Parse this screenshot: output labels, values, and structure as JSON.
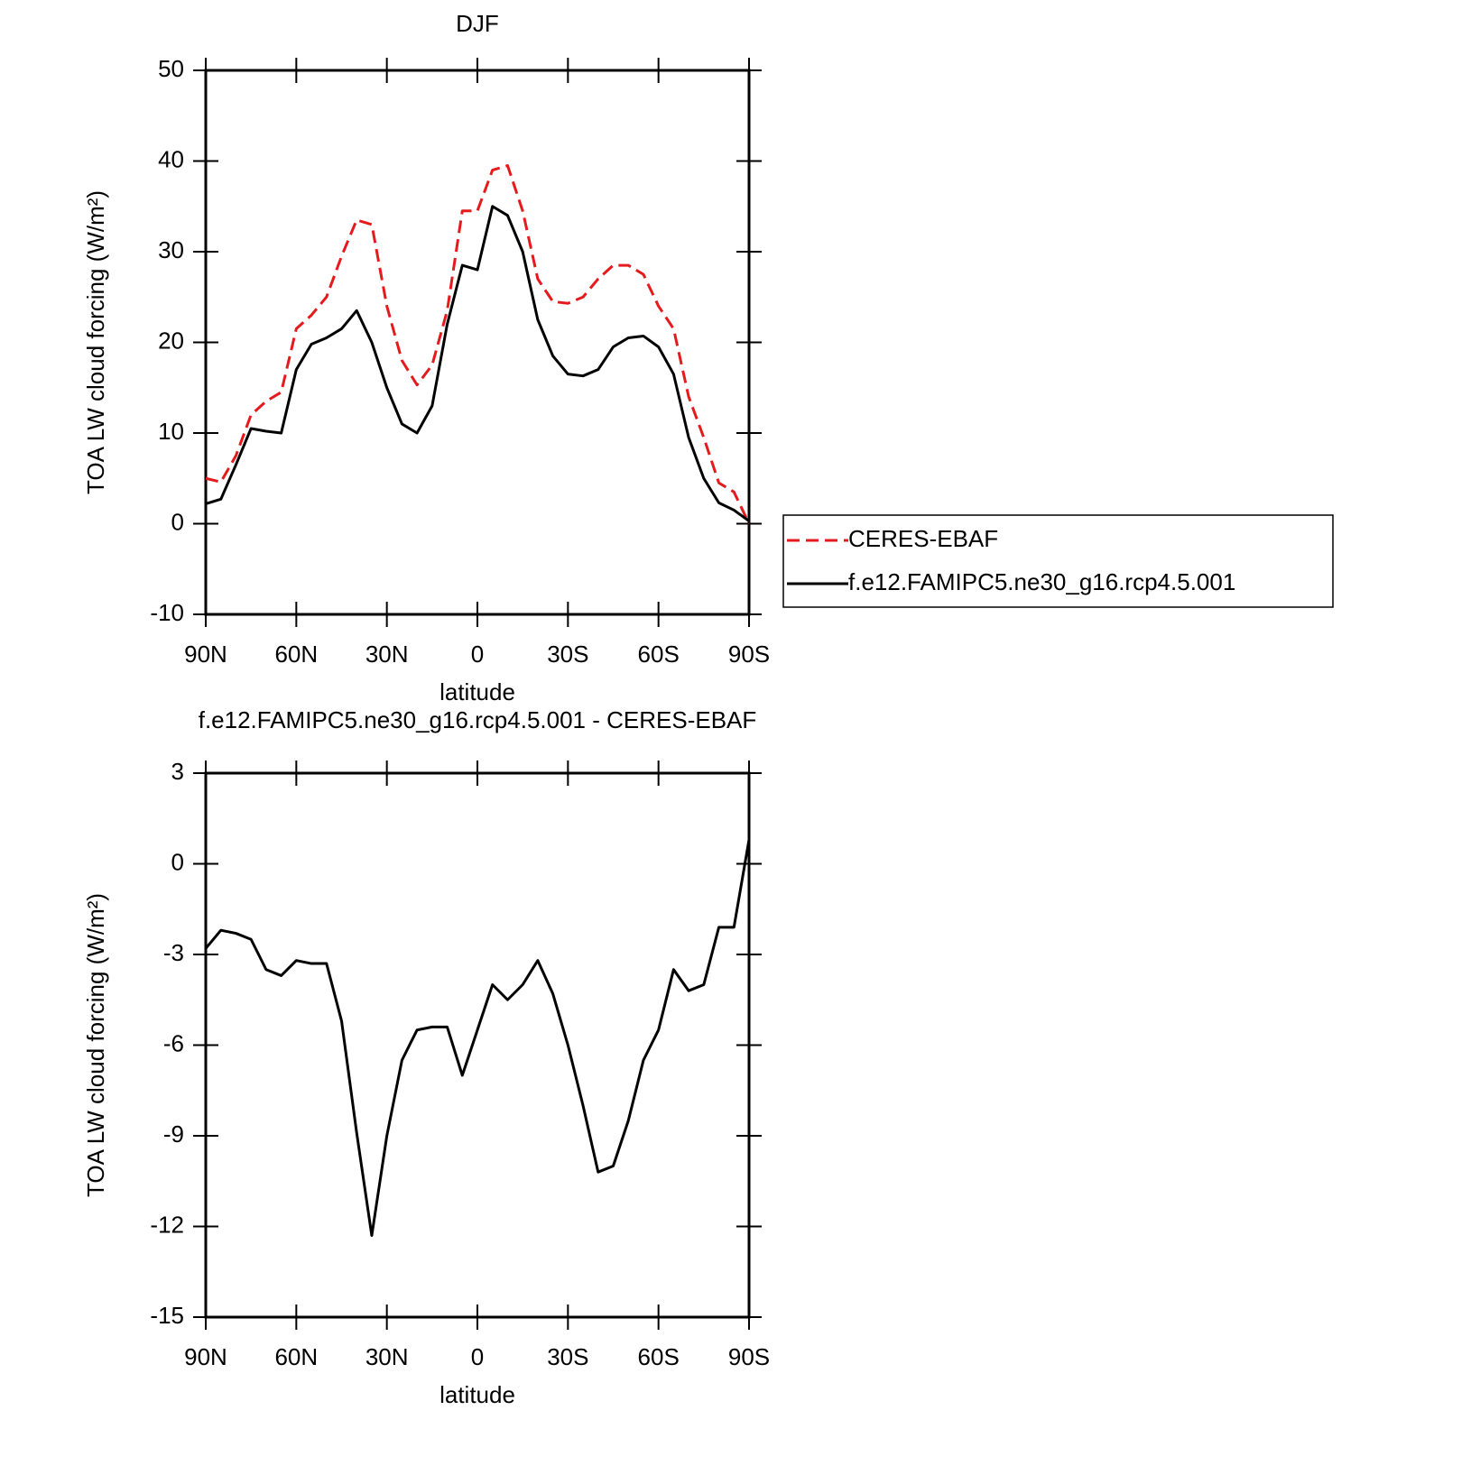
{
  "chart_data": [
    {
      "type": "line",
      "title": "DJF",
      "xlabel": "latitude",
      "ylabel": "TOA LW cloud forcing (W/m²)",
      "x": [
        90,
        85,
        80,
        75,
        70,
        65,
        60,
        55,
        50,
        45,
        40,
        35,
        30,
        25,
        20,
        15,
        10,
        5,
        0,
        -5,
        -10,
        -15,
        -20,
        -25,
        -30,
        -35,
        -40,
        -45,
        -50,
        -55,
        -60,
        -65,
        -70,
        -75,
        -80,
        -85,
        -90
      ],
      "xlim": [
        90,
        -90
      ],
      "xticks": [
        {
          "value": 90,
          "label": "90N"
        },
        {
          "value": 60,
          "label": "60N"
        },
        {
          "value": 30,
          "label": "30N"
        },
        0,
        {
          "value": -30,
          "label": "30S"
        },
        {
          "value": -60,
          "label": "60S"
        },
        {
          "value": -90,
          "label": "90S"
        }
      ],
      "ylim": [
        -10,
        50
      ],
      "yticks": [
        -10,
        0,
        10,
        20,
        30,
        40,
        50
      ],
      "legend": "right",
      "series": [
        {
          "name": "CERES-EBAF",
          "color": "#e41a1c",
          "line_style": "dashed",
          "values": [
            5,
            4.6,
            7.5,
            12,
            13.5,
            14.5,
            21.5,
            23,
            25,
            29.5,
            33.5,
            33,
            24,
            18,
            15.3,
            17.5,
            23.5,
            34.5,
            34.5,
            39,
            39.5,
            34.5,
            27,
            24.5,
            24.3,
            25,
            27,
            28.5,
            28.5,
            27.5,
            24,
            21.5,
            14,
            9.5,
            4.5,
            3.5,
            0
          ]
        },
        {
          "name": "f.e12.FAMIPC5.ne30_g16.rcp4.5.001",
          "color": "#000000",
          "line_style": "solid",
          "values": [
            2.2,
            2.7,
            6.5,
            10.5,
            10.2,
            10,
            17,
            19.8,
            20.5,
            21.5,
            23.5,
            20,
            15,
            11,
            10,
            13,
            22,
            28.5,
            28,
            35,
            34,
            30,
            22.5,
            18.5,
            16.5,
            16.3,
            17,
            19.5,
            20.5,
            20.7,
            19.5,
            16.5,
            9.5,
            5,
            2.3,
            1.5,
            0.3
          ]
        }
      ]
    },
    {
      "type": "line",
      "title": "f.e12.FAMIPC5.ne30_g16.rcp4.5.001 - CERES-EBAF",
      "xlabel": "latitude",
      "ylabel": "TOA LW cloud forcing (W/m²)",
      "x": [
        90,
        85,
        80,
        75,
        70,
        65,
        60,
        55,
        50,
        45,
        40,
        35,
        30,
        25,
        20,
        15,
        10,
        5,
        0,
        -5,
        -10,
        -15,
        -20,
        -25,
        -30,
        -35,
        -40,
        -45,
        -50,
        -55,
        -60,
        -65,
        -70,
        -75,
        -80,
        -85,
        -90
      ],
      "xlim": [
        90,
        -90
      ],
      "xticks": [
        {
          "value": 90,
          "label": "90N"
        },
        {
          "value": 60,
          "label": "60N"
        },
        {
          "value": 30,
          "label": "30N"
        },
        0,
        {
          "value": -30,
          "label": "30S"
        },
        {
          "value": -60,
          "label": "60S"
        },
        {
          "value": -90,
          "label": "90S"
        }
      ],
      "ylim": [
        -15,
        3
      ],
      "yticks": [
        -15,
        -12,
        -9,
        -6,
        -3,
        0,
        3
      ],
      "series": [
        {
          "color": "#000000",
          "line_style": "solid",
          "values": [
            -2.8,
            -2.2,
            -2.3,
            -2.5,
            -3.5,
            -3.7,
            -3.2,
            -3.3,
            -3.3,
            -5.2,
            -8.9,
            -12.3,
            -9,
            -6.5,
            -5.5,
            -5.4,
            -5.4,
            -7,
            -5.5,
            -4,
            -4.5,
            -4,
            -3.2,
            -4.3,
            -6,
            -8,
            -10.2,
            -10,
            -8.5,
            -6.5,
            -5.5,
            -3.5,
            -4.2,
            -4,
            -2.1,
            -2.1,
            0.8
          ]
        }
      ]
    }
  ]
}
